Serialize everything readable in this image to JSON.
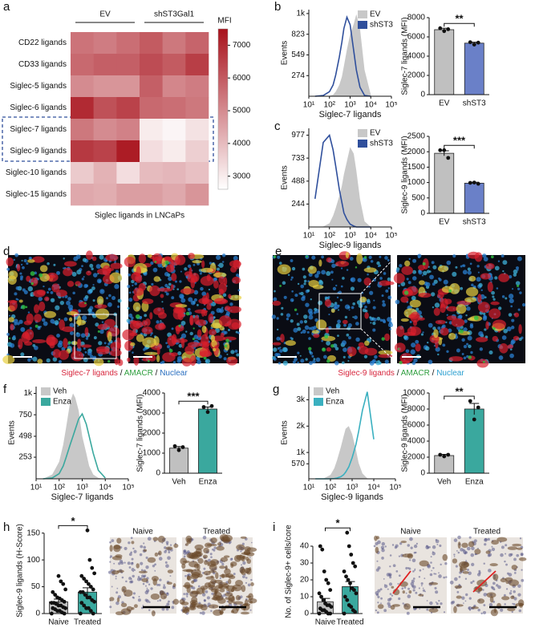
{
  "panel_labels": [
    "a",
    "b",
    "c",
    "d",
    "e",
    "f",
    "g",
    "h",
    "i"
  ],
  "figures": {
    "d": {
      "caption": [
        "Siglec-7 ligands",
        " / ",
        "AMACR",
        " / ",
        "Nuclear"
      ]
    },
    "e": {
      "caption": [
        "Siglec-9 ligands",
        " / ",
        "AMACR",
        " / ",
        "Nuclear"
      ]
    },
    "h": {
      "images": [
        "Naive",
        "Treated"
      ]
    },
    "i": {
      "images": [
        "Naive",
        "Treated"
      ]
    }
  },
  "chart_data": [
    {
      "type": "heatmap",
      "xlabel": "Siglec ligands in LNCaPs",
      "column_groups": [
        "EV",
        "shST3Gal1"
      ],
      "rows": [
        "CD22 ligands",
        "CD33 ligands",
        "Siglec-5 ligands",
        "Siglec-6 ligands",
        "Siglec-7 ligands",
        "Siglec-9 ligands",
        "Siglec-10 ligands",
        "Siglec-15 ligands"
      ],
      "values": [
        [
          5500,
          5300,
          5600,
          6000,
          5400,
          5800
        ],
        [
          5700,
          5900,
          5900,
          6300,
          6000,
          6600
        ],
        [
          5000,
          4800,
          4800,
          5900,
          5100,
          5300
        ],
        [
          7000,
          6200,
          6500,
          5700,
          5600,
          5400
        ],
        [
          5400,
          5000,
          5200,
          3000,
          2800,
          3200
        ],
        [
          6700,
          6500,
          7300,
          3300,
          3000,
          3600
        ],
        [
          3700,
          4200,
          3300,
          4000,
          4100,
          3900
        ],
        [
          4400,
          4300,
          4600,
          4600,
          4400,
          4800
        ]
      ],
      "colorbar_label": "MFI",
      "clim": [
        2600,
        7500
      ],
      "colorbar_ticks": [
        3000,
        4000,
        5000,
        6000,
        7000
      ],
      "colormap": [
        "#ffffff",
        "#a8121c"
      ]
    },
    {
      "type": "density",
      "xlabel": "Siglec-7 ligands",
      "ylabel": "Events",
      "xscale": "log",
      "x": [
        20,
        50,
        100,
        150,
        200,
        300,
        400,
        500,
        700,
        1000,
        1500,
        2000,
        3000,
        5000,
        10000
      ],
      "series": [
        {
          "name": "EV",
          "color": "#c8c8c8",
          "filled": true,
          "values": [
            0,
            0,
            5,
            20,
            60,
            150,
            260,
            400,
            620,
            820,
            960,
            1090,
            900,
            350,
            20
          ]
        },
        {
          "name": "shST3",
          "color": "#2f4f9c",
          "filled": false,
          "values": [
            0,
            10,
            60,
            150,
            280,
            520,
            720,
            900,
            1050,
            950,
            600,
            350,
            120,
            10,
            0
          ]
        }
      ],
      "xlim": [
        10,
        100000
      ],
      "xticks": [
        {
          "value": 10,
          "label": "10¹"
        },
        {
          "value": 100,
          "label": "10²"
        },
        {
          "value": 1000,
          "label": "10³"
        },
        {
          "value": 10000,
          "label": "10⁴"
        },
        {
          "value": 100000,
          "label": "10⁵"
        }
      ],
      "ylim": [
        0,
        1150
      ],
      "yticks": [
        274,
        549,
        823,
        {
          "value": 1098,
          "label": "1k"
        }
      ],
      "legend": "upper right"
    },
    {
      "type": "bar",
      "ylabel": "Siglec-7 ligands (MFI)",
      "categories": [
        "EV",
        "shST3"
      ],
      "values": [
        6750,
        5350
      ],
      "errors": [
        150,
        100
      ],
      "points": [
        [
          6900,
          6600,
          6800
        ],
        [
          5450,
          5200,
          5400
        ]
      ],
      "colors": [
        "#c0c0c0",
        "#6a80c8"
      ],
      "significance": "**",
      "ylim": [
        0,
        8000
      ],
      "yticks": [
        0,
        2000,
        4000,
        6000,
        8000
      ]
    },
    {
      "type": "density",
      "xlabel": "Siglec-9 ligands",
      "ylabel": "Events",
      "xscale": "log",
      "x": [
        20,
        50,
        100,
        150,
        200,
        300,
        400,
        500,
        700,
        1000,
        1500,
        2000,
        3000,
        5000,
        10000
      ],
      "series": [
        {
          "name": "EV",
          "color": "#c8c8c8",
          "filled": true,
          "values": [
            0,
            5,
            40,
            120,
            200,
            330,
            440,
            560,
            700,
            850,
            780,
            600,
            300,
            60,
            0
          ]
        },
        {
          "name": "shST3",
          "color": "#2f4f9c",
          "filled": false,
          "values": [
            300,
            900,
            977,
            820,
            650,
            400,
            260,
            150,
            80,
            30,
            10,
            0,
            0,
            0,
            0
          ]
        }
      ],
      "xlim": [
        10,
        100000
      ],
      "xticks": [
        {
          "value": 10,
          "label": "10¹"
        },
        {
          "value": 100,
          "label": "10²"
        },
        {
          "value": 1000,
          "label": "10³"
        },
        {
          "value": 10000,
          "label": "10⁴"
        },
        {
          "value": 100000,
          "label": "10⁵"
        }
      ],
      "ylim": [
        0,
        1050
      ],
      "yticks": [
        244,
        488,
        733,
        977
      ],
      "legend": "upper right"
    },
    {
      "type": "bar",
      "ylabel": "Siglec-9 ligands (MFI)",
      "categories": [
        "EV",
        "shST3"
      ],
      "values": [
        1950,
        980
      ],
      "errors": [
        80,
        30
      ],
      "points": [
        [
          2050,
          2050,
          1800
        ],
        [
          990,
          1000,
          960
        ]
      ],
      "colors": [
        "#c0c0c0",
        "#6a80c8"
      ],
      "significance": "***",
      "ylim": [
        0,
        2500
      ],
      "yticks": [
        0,
        500,
        1000,
        1500,
        2000,
        2500
      ]
    },
    {
      "type": "density",
      "xlabel": "Siglec-7 ligands",
      "ylabel": "Events",
      "xscale": "log",
      "x": [
        20,
        50,
        100,
        150,
        200,
        300,
        400,
        500,
        700,
        1000,
        1500,
        2000,
        3000,
        5000,
        10000
      ],
      "series": [
        {
          "name": "Veh",
          "color": "#c8c8c8",
          "filled": true,
          "values": [
            0,
            50,
            200,
            400,
            600,
            900,
            1000,
            950,
            800,
            500,
            300,
            150,
            50,
            10,
            0
          ]
        },
        {
          "name": "Enza",
          "color": "#3aa89e",
          "filled": false,
          "values": [
            0,
            10,
            60,
            150,
            250,
            400,
            500,
            580,
            700,
            760,
            640,
            500,
            300,
            100,
            10
          ]
        }
      ],
      "xlim": [
        10,
        100000
      ],
      "xticks": [
        {
          "value": 10,
          "label": "10¹"
        },
        {
          "value": 100,
          "label": "10²"
        },
        {
          "value": 1000,
          "label": "10³"
        },
        {
          "value": 10000,
          "label": "10⁴"
        },
        {
          "value": 100000,
          "label": "10⁵"
        }
      ],
      "ylim": [
        0,
        1080
      ],
      "yticks": [
        253,
        498,
        750,
        {
          "value": 1000,
          "label": "1k"
        }
      ],
      "legend": "upper left"
    },
    {
      "type": "bar",
      "ylabel": "Siglec-7 ligands (MFI)",
      "categories": [
        "Veh",
        "Enza"
      ],
      "values": [
        1250,
        3200
      ],
      "errors": [
        80,
        100
      ],
      "points": [
        [
          1350,
          1150,
          1300
        ],
        [
          3300,
          3050,
          3350
        ]
      ],
      "colors": [
        "#c0c0c0",
        "#3aa89e"
      ],
      "significance": "***",
      "ylim": [
        0,
        4000
      ],
      "yticks": [
        0,
        1000,
        2000,
        3000,
        4000
      ]
    },
    {
      "type": "density",
      "xlabel": "Siglec-9 ligands",
      "ylabel": "Events",
      "xscale": "log",
      "x": [
        20,
        50,
        100,
        150,
        200,
        300,
        400,
        500,
        700,
        1000,
        1500,
        2000,
        3000,
        5000,
        10000
      ],
      "series": [
        {
          "name": "Veh",
          "color": "#c8c8c8",
          "filled": true,
          "values": [
            0,
            20,
            150,
            400,
            700,
            1200,
            1600,
            1900,
            2000,
            1700,
            1100,
            600,
            200,
            20,
            0
          ]
        },
        {
          "name": "Enza",
          "color": "#3ab0c0",
          "filled": false,
          "values": [
            0,
            0,
            0,
            10,
            30,
            80,
            150,
            250,
            450,
            800,
            1300,
            1800,
            2600,
            3300,
            1500
          ]
        }
      ],
      "xlim": [
        10,
        100000
      ],
      "xticks": [
        {
          "value": 10,
          "label": "10¹"
        },
        {
          "value": 100,
          "label": "10²"
        },
        {
          "value": 1000,
          "label": "10³"
        },
        {
          "value": 10000,
          "label": "10⁴"
        },
        {
          "value": 100000,
          "label": "10⁵"
        }
      ],
      "ylim": [
        0,
        3500
      ],
      "yticks": [
        570,
        {
          "value": 1000,
          "label": "1k"
        },
        {
          "value": 2000,
          "label": "2k"
        },
        {
          "value": 3000,
          "label": "3k"
        }
      ],
      "legend": "upper left"
    },
    {
      "type": "bar",
      "ylabel": "Siglec-9 ligands (MFI)",
      "categories": [
        "Veh",
        "Enza"
      ],
      "values": [
        2200,
        8000
      ],
      "errors": [
        150,
        700
      ],
      "points": [
        [
          2300,
          2100,
          2300
        ],
        [
          9000,
          6700,
          8200
        ]
      ],
      "colors": [
        "#c0c0c0",
        "#3aa89e"
      ],
      "significance": "**",
      "ylim": [
        0,
        10000
      ],
      "yticks": [
        0,
        2000,
        4000,
        6000,
        8000,
        10000
      ]
    },
    {
      "type": "bar",
      "ylabel": "Siglec-9 ligands (H-Score)",
      "categories": [
        "Naive",
        "Treated"
      ],
      "values": [
        22,
        40
      ],
      "errors": [
        5,
        8
      ],
      "points": [
        [
          0,
          0,
          2,
          5,
          5,
          8,
          10,
          10,
          12,
          15,
          15,
          18,
          20,
          20,
          22,
          25,
          28,
          30,
          35,
          40,
          45,
          55,
          60,
          70
        ],
        [
          0,
          0,
          5,
          10,
          10,
          15,
          20,
          22,
          25,
          30,
          30,
          35,
          40,
          40,
          45,
          50,
          55,
          60,
          65,
          70,
          75,
          85,
          100,
          155
        ]
      ],
      "colors": [
        "#c0c0c0",
        "#3aa89e"
      ],
      "significance": "*",
      "ylim": [
        0,
        160
      ],
      "yticks": [
        0,
        50,
        100,
        150
      ]
    },
    {
      "type": "bar",
      "ylabel": "No. of Siglec-9+ cells/core",
      "categories": [
        "Naive",
        "Treated"
      ],
      "values": [
        7,
        16
      ],
      "errors": [
        2,
        3
      ],
      "points": [
        [
          0,
          0,
          0,
          1,
          2,
          2,
          3,
          4,
          5,
          5,
          6,
          8,
          10,
          12,
          14,
          18,
          20,
          25,
          38,
          40
        ],
        [
          0,
          1,
          2,
          4,
          5,
          8,
          10,
          12,
          14,
          15,
          18,
          20,
          22,
          25,
          28,
          30,
          35,
          40,
          48
        ]
      ],
      "colors": [
        "#c0c0c0",
        "#3aa89e"
      ],
      "significance": "*",
      "ylim": [
        0,
        50
      ],
      "yticks": [
        0,
        10,
        20,
        30,
        40
      ]
    }
  ]
}
